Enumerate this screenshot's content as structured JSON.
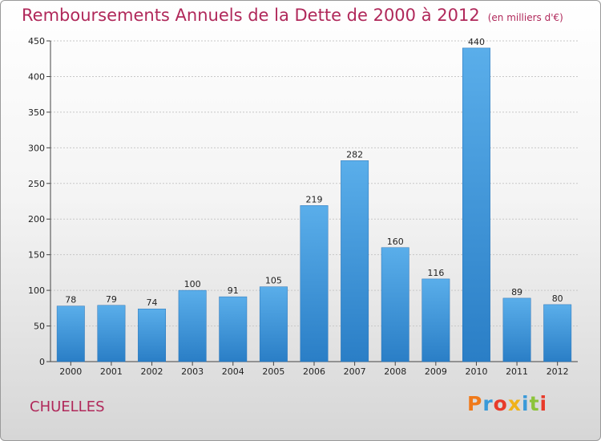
{
  "chart_data": {
    "type": "bar",
    "title": "Remboursements Annuels de la Dette de 2000 à 2012",
    "unit_note": "(en milliers d'€)",
    "xlabel": "",
    "ylabel": "",
    "categories": [
      "2000",
      "2001",
      "2002",
      "2003",
      "2004",
      "2005",
      "2006",
      "2007",
      "2008",
      "2009",
      "2010",
      "2011",
      "2012"
    ],
    "values": [
      78,
      79,
      74,
      100,
      91,
      105,
      219,
      282,
      160,
      116,
      440,
      89,
      80
    ],
    "ylim": [
      0,
      450
    ],
    "yticks": [
      0,
      50,
      100,
      150,
      200,
      250,
      300,
      350,
      400,
      450
    ],
    "grid": true,
    "bar_color": "#3a90d8"
  },
  "footer": {
    "commune": "CHUELLES",
    "brand": "Proxiti"
  },
  "brand_letter_colors": [
    "#f07a1a",
    "#3a9ad9",
    "#e83a2a",
    "#f0b21a",
    "#3a9ad9",
    "#8cc43a",
    "#e83a2a"
  ]
}
